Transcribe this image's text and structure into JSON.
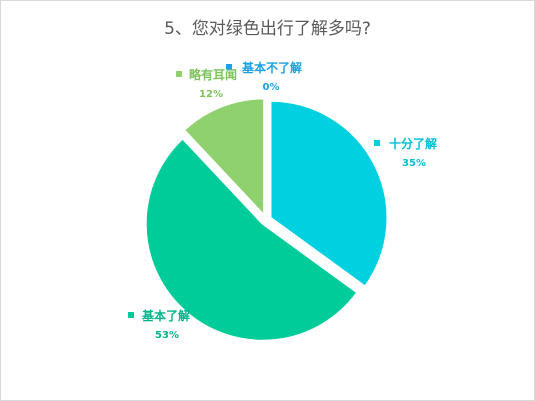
{
  "chart_data": {
    "type": "pie",
    "title": "5、您对绿色出行了解多吗?",
    "slices": [
      {
        "label": "基本不了解",
        "percent_label": "0%",
        "value": 0,
        "color": "#1ba1e2"
      },
      {
        "label": "十分了解",
        "percent_label": "35%",
        "value": 35,
        "color": "#00d0e0"
      },
      {
        "label": "基本了解",
        "percent_label": "53%",
        "value": 53,
        "color": "#00cc99"
      },
      {
        "label": "略有耳闻",
        "percent_label": "12%",
        "value": 12,
        "color": "#8fd16e"
      }
    ],
    "exploded": true,
    "legend_placement": "data labels next to slices"
  }
}
